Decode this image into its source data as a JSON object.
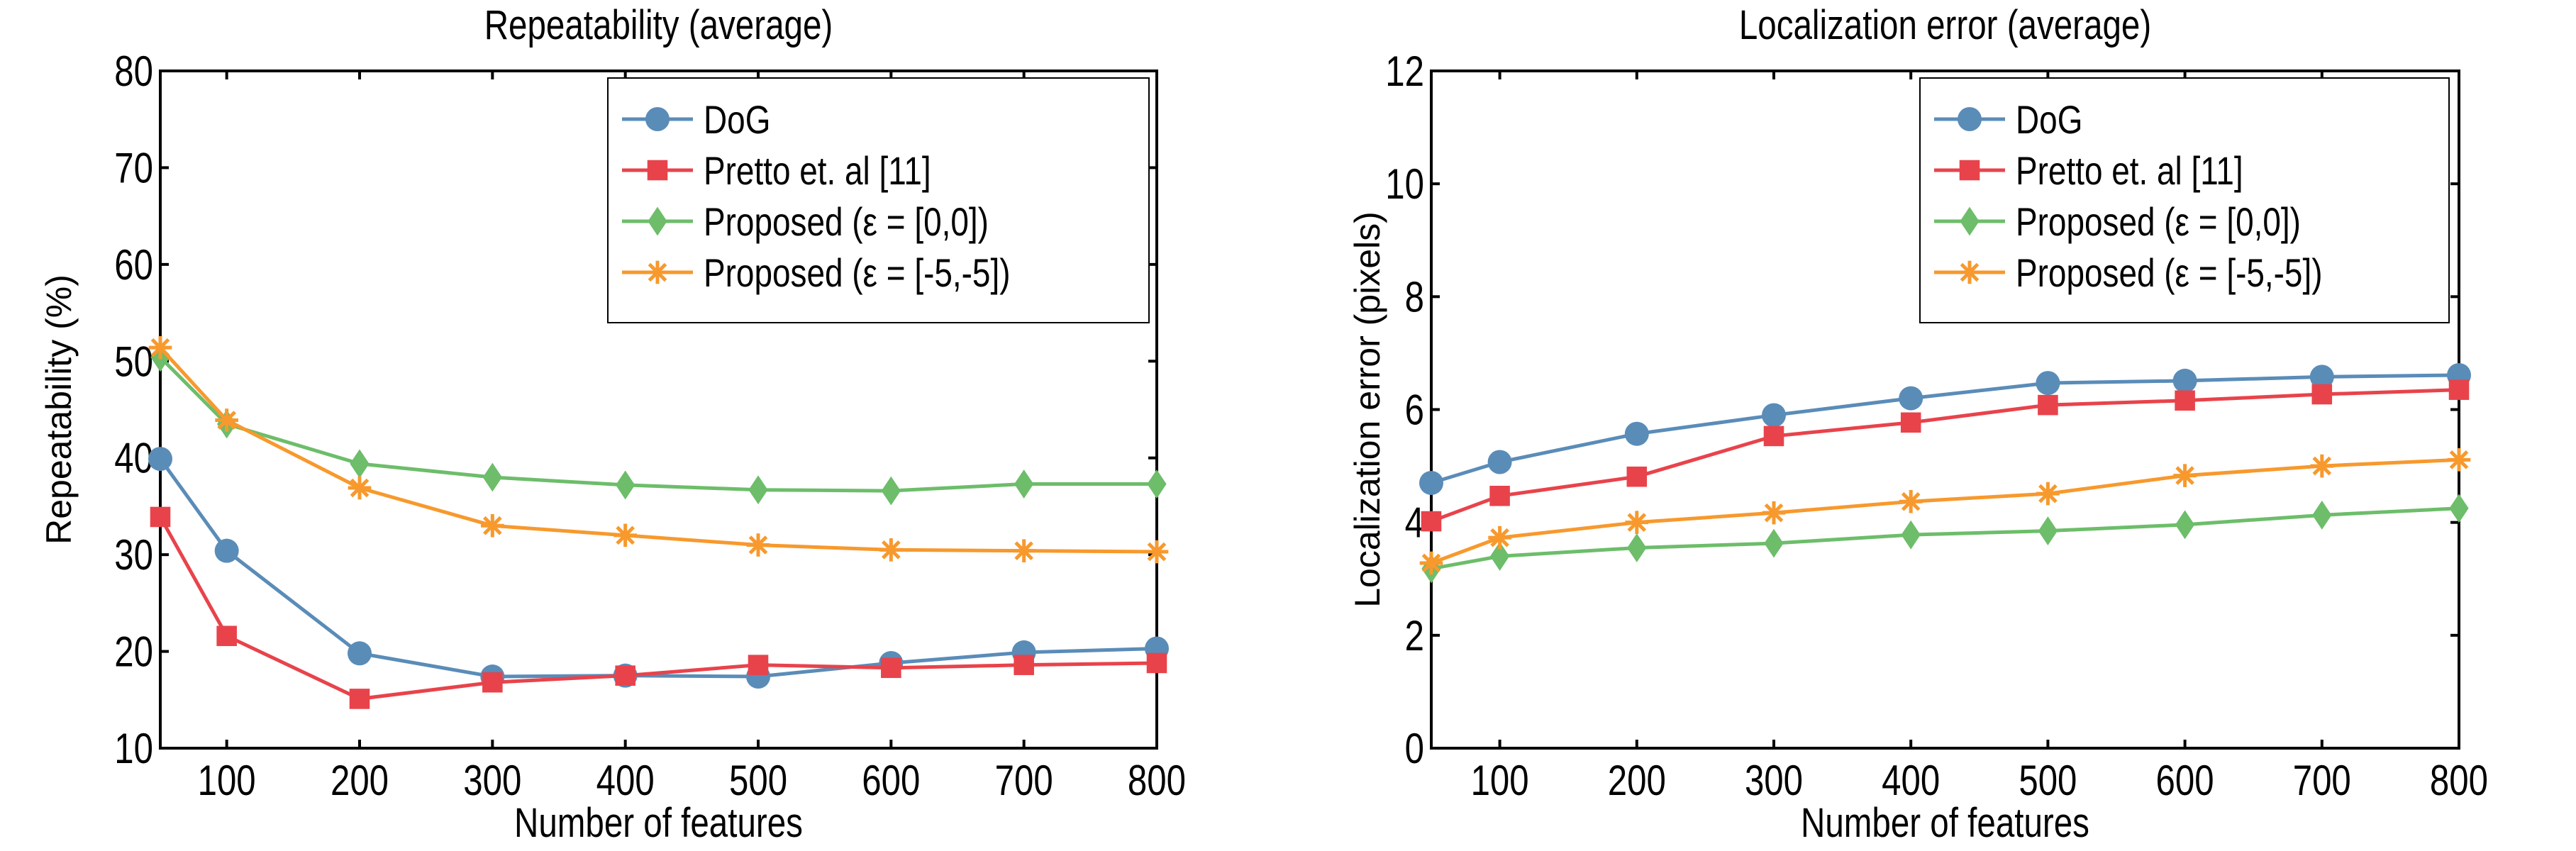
{
  "colors": {
    "DoG": "#5a8cb8",
    "Pretto": "#e8434b",
    "Proposed00": "#6dbd6a",
    "Proposed55": "#f7992d"
  },
  "chart_data": [
    {
      "type": "line",
      "title": "Repeatability (average)",
      "xlabel": "Number of features",
      "ylabel": "Repeatability (%)",
      "xlim": [
        50,
        800
      ],
      "ylim": [
        10,
        80
      ],
      "xticks": [
        100,
        200,
        300,
        400,
        500,
        600,
        700,
        800
      ],
      "yticks": [
        10,
        20,
        30,
        40,
        50,
        60,
        70,
        80
      ],
      "legend_position": "top-right",
      "x": [
        50,
        100,
        200,
        300,
        400,
        500,
        600,
        700,
        800
      ],
      "series": [
        {
          "name": "DoG",
          "marker": "circle",
          "color_key": "DoG",
          "values": [
            39.9,
            30.4,
            19.8,
            17.4,
            17.5,
            17.4,
            18.8,
            19.9,
            20.3
          ]
        },
        {
          "name": "Pretto et. al [11]",
          "marker": "square",
          "color_key": "Pretto",
          "values": [
            33.9,
            21.6,
            15.1,
            16.8,
            17.5,
            18.6,
            18.3,
            18.6,
            18.8
          ]
        },
        {
          "name": "Proposed (ε = [0,0])",
          "marker": "diamond",
          "color_key": "Proposed00",
          "values": [
            50.4,
            43.5,
            39.4,
            38.0,
            37.2,
            36.7,
            36.6,
            37.3,
            37.3
          ]
        },
        {
          "name": "Proposed (ε = [-5,-5])",
          "marker": "asterisk",
          "color_key": "Proposed55",
          "values": [
            51.4,
            43.9,
            36.9,
            33.0,
            32.0,
            31.0,
            30.5,
            30.4,
            30.3
          ]
        }
      ]
    },
    {
      "type": "line",
      "title": "Localization error (average)",
      "xlabel": "Number of features",
      "ylabel": "Localization error (pixels)",
      "xlim": [
        50,
        800
      ],
      "ylim": [
        0,
        12
      ],
      "xticks": [
        100,
        200,
        300,
        400,
        500,
        600,
        700,
        800
      ],
      "yticks": [
        0,
        2,
        4,
        6,
        8,
        10,
        12
      ],
      "legend_position": "top-right",
      "x": [
        50,
        100,
        200,
        300,
        400,
        500,
        600,
        700,
        800
      ],
      "series": [
        {
          "name": "DoG",
          "marker": "circle",
          "color_key": "DoG",
          "values": [
            4.7,
            5.07,
            5.57,
            5.9,
            6.2,
            6.47,
            6.51,
            6.58,
            6.61
          ]
        },
        {
          "name": "Pretto et. al [11]",
          "marker": "square",
          "color_key": "Pretto",
          "values": [
            4.02,
            4.47,
            4.81,
            5.53,
            5.77,
            6.08,
            6.16,
            6.27,
            6.35
          ]
        },
        {
          "name": "Proposed (ε = [0,0])",
          "marker": "diamond",
          "color_key": "Proposed00",
          "values": [
            3.18,
            3.4,
            3.55,
            3.63,
            3.78,
            3.85,
            3.96,
            4.13,
            4.25
          ]
        },
        {
          "name": "Proposed (ε = [-5,-5])",
          "marker": "asterisk",
          "color_key": "Proposed55",
          "values": [
            3.28,
            3.73,
            4.0,
            4.17,
            4.37,
            4.51,
            4.83,
            5.0,
            5.11
          ]
        }
      ]
    }
  ]
}
